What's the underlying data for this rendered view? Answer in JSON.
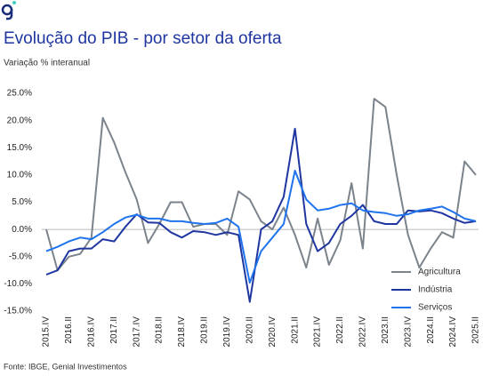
{
  "chart_data": {
    "type": "line",
    "title": "Evolução do PIB - por setor da oferta",
    "subtitle": "Variação % interanual",
    "source": "Fonte: IBGE, Genial Investimentos",
    "categories": [
      "2015.IV",
      null,
      "2016.II",
      null,
      "2016.IV",
      null,
      "2017.II",
      null,
      "2017.IV",
      null,
      "2018.II",
      null,
      "2018.IV",
      null,
      "2019.II",
      null,
      "2019.IV",
      null,
      "2020.II",
      null,
      "2020.IV",
      null,
      "2021.II",
      null,
      "2021.IV",
      null,
      "2022.II",
      null,
      "2022.IV",
      null,
      "2023.II",
      null,
      "2023.IV",
      null,
      "2024.II",
      null,
      "2024.IV",
      null,
      "2025.II"
    ],
    "series": [
      {
        "name": "Agricultura",
        "color": "#7b838c",
        "values": [
          0,
          -7.5,
          -5,
          -4.5,
          -1.5,
          20.5,
          16,
          10.5,
          5.5,
          -2.5,
          1,
          5,
          5,
          0.5,
          1,
          1,
          -1,
          7,
          5.5,
          1.5,
          0,
          4,
          -1,
          -7,
          2,
          -6.5,
          -2,
          8.5,
          -3.5,
          24,
          22.5,
          10,
          -1,
          -7,
          -3.5,
          -0.5,
          -1.5,
          12.5,
          10
        ]
      },
      {
        "name": "Indústria",
        "color": "#1f36a0",
        "values": [
          -8.3,
          -7.5,
          -4,
          -3.5,
          -3.5,
          -1.8,
          -2.2,
          0.5,
          2.8,
          1.3,
          1.2,
          -0.5,
          -1.5,
          -0.3,
          -0.5,
          -1,
          -0.5,
          -1,
          -13.3,
          0,
          1.5,
          6,
          18.5,
          1,
          -4,
          -2.5,
          1,
          2.5,
          4.5,
          1.5,
          1,
          1,
          3.5,
          3.3,
          3.5,
          3,
          2,
          1.2,
          1.5
        ]
      },
      {
        "name": "Serviços",
        "color": "#1f74ee",
        "values": [
          -4,
          -3.2,
          -2.2,
          -1.5,
          -1.8,
          -0.5,
          1,
          2.2,
          2.7,
          2,
          2,
          1.5,
          1.5,
          1.2,
          1,
          1.2,
          2,
          0.5,
          -9.8,
          -4,
          -1.5,
          1,
          10.8,
          5.5,
          3.5,
          3.8,
          4.5,
          4.8,
          3.5,
          3.2,
          3,
          2.5,
          2.8,
          3.5,
          3.8,
          4.2,
          3.2,
          2,
          1.5
        ]
      }
    ],
    "ylim": [
      -15,
      25
    ],
    "yticks": [
      {
        "value": -15,
        "label": "-15.0%"
      },
      {
        "value": -10,
        "label": "-10.0%"
      },
      {
        "value": -5,
        "label": "-5.0%"
      },
      {
        "value": 0,
        "label": "0.0%"
      },
      {
        "value": 5,
        "label": "5.0%"
      },
      {
        "value": 10,
        "label": "10.0%"
      },
      {
        "value": 15,
        "label": "15.0%"
      },
      {
        "value": 20,
        "label": "20.0%"
      },
      {
        "value": 25,
        "label": "25.0%"
      }
    ],
    "legend": "right"
  }
}
